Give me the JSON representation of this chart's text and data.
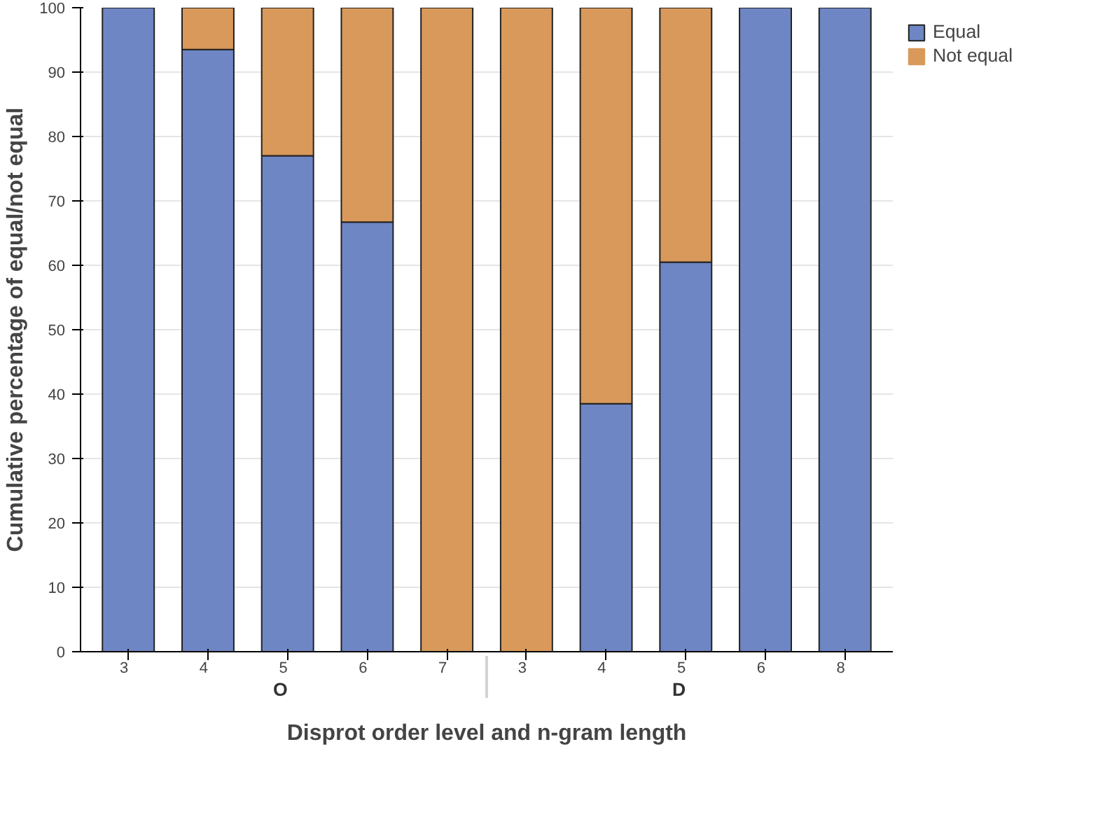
{
  "chart_data": {
    "type": "bar",
    "stacked": true,
    "xlabel": "Disprot order level and n-gram length",
    "ylabel": "Cumulative percentage of equal/not equal",
    "categories": [
      "3",
      "4",
      "5",
      "6",
      "7",
      "3",
      "4",
      "5",
      "6",
      "8"
    ],
    "annotations": [
      "O",
      "D"
    ],
    "series": [
      {
        "name": "Equal",
        "color": "#6f86c4",
        "values": [
          100,
          93.5,
          77,
          66.7,
          0,
          0,
          38.5,
          60.5,
          100,
          100
        ]
      },
      {
        "name": "Not equal",
        "color": "#d9995a",
        "values": [
          0,
          6.5,
          23,
          33.3,
          100,
          100,
          61.5,
          39.5,
          0,
          0
        ]
      }
    ],
    "ylim": [
      0,
      100
    ],
    "yticks": [
      0,
      10,
      20,
      30,
      40,
      50,
      60,
      70,
      80,
      90,
      100
    ],
    "grid": "y",
    "legend": "top right"
  }
}
